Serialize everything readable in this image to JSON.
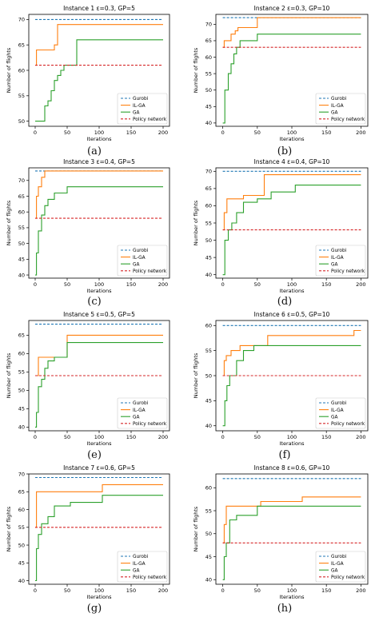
{
  "figure": {
    "panel_labels": [
      "(a)",
      "(b)",
      "(c)",
      "(d)",
      "(e)",
      "(f)",
      "(g)",
      "(h)"
    ]
  },
  "colors": {
    "gurobi": "#1f77b4",
    "ilga": "#ff7f0e",
    "ga": "#2ca02c",
    "policy": "#d62728"
  },
  "chart_data": [
    {
      "type": "line",
      "title": "Instance 1 ε=0.3, GP=5",
      "xlabel": "Iterations",
      "ylabel": "Number of flights",
      "xlim": [
        -10,
        210
      ],
      "ylim": [
        49,
        71
      ],
      "xticks": [
        0,
        50,
        100,
        150,
        200
      ],
      "yticks": [
        50,
        55,
        60,
        65,
        70
      ],
      "grid": false,
      "legend_position": "lower-right",
      "series": [
        {
          "name": "Gurobi",
          "style": "dashed",
          "color": "gurobi",
          "x": [
            0,
            200
          ],
          "y": [
            70,
            70
          ]
        },
        {
          "name": "IL-GA",
          "style": "step",
          "color": "ilga",
          "x": [
            0,
            2,
            30,
            35,
            200
          ],
          "y": [
            61,
            64,
            65,
            69,
            69
          ]
        },
        {
          "name": "GA",
          "style": "step",
          "color": "ga",
          "x": [
            0,
            15,
            20,
            25,
            30,
            35,
            40,
            45,
            65,
            200
          ],
          "y": [
            50,
            53,
            54,
            56,
            58,
            59,
            60,
            61,
            66,
            66
          ]
        },
        {
          "name": "Policy network",
          "style": "dashed",
          "color": "policy",
          "x": [
            0,
            200
          ],
          "y": [
            61,
            61
          ]
        }
      ]
    },
    {
      "type": "line",
      "title": "Instance 2 ε=0.3, GP=10",
      "xlabel": "Iterations",
      "ylabel": "Number of flights",
      "xlim": [
        -10,
        210
      ],
      "ylim": [
        39,
        73
      ],
      "xticks": [
        0,
        50,
        100,
        150,
        200
      ],
      "yticks": [
        40,
        45,
        50,
        55,
        60,
        65,
        70
      ],
      "grid": false,
      "legend_position": "lower-right",
      "series": [
        {
          "name": "Gurobi",
          "style": "dashed",
          "color": "gurobi",
          "x": [
            0,
            200
          ],
          "y": [
            72,
            72
          ]
        },
        {
          "name": "IL-GA",
          "style": "step",
          "color": "ilga",
          "x": [
            0,
            2,
            12,
            18,
            22,
            50,
            200
          ],
          "y": [
            63,
            65,
            67,
            68,
            69,
            72,
            72
          ]
        },
        {
          "name": "GA",
          "style": "step",
          "color": "ga",
          "x": [
            0,
            3,
            8,
            12,
            16,
            20,
            25,
            50,
            200
          ],
          "y": [
            40,
            50,
            55,
            58,
            61,
            63,
            65,
            67,
            67
          ]
        },
        {
          "name": "Policy network",
          "style": "dashed",
          "color": "policy",
          "x": [
            0,
            200
          ],
          "y": [
            63,
            63
          ]
        }
      ]
    },
    {
      "type": "line",
      "title": "Instance 3 ε=0.4, GP=5",
      "xlabel": "Iterations",
      "ylabel": "Number of flights",
      "xlim": [
        -10,
        210
      ],
      "ylim": [
        39,
        74
      ],
      "xticks": [
        0,
        50,
        100,
        150,
        200
      ],
      "yticks": [
        40,
        45,
        50,
        55,
        60,
        65,
        70
      ],
      "grid": false,
      "legend_position": "lower-right",
      "series": [
        {
          "name": "Gurobi",
          "style": "dashed",
          "color": "gurobi",
          "x": [
            0,
            200
          ],
          "y": [
            73,
            73
          ]
        },
        {
          "name": "IL-GA",
          "style": "step",
          "color": "ilga",
          "x": [
            0,
            2,
            5,
            10,
            15,
            200
          ],
          "y": [
            58,
            65,
            68,
            71,
            73,
            73
          ]
        },
        {
          "name": "GA",
          "style": "step",
          "color": "ga",
          "x": [
            0,
            2,
            5,
            10,
            15,
            20,
            30,
            50,
            200
          ],
          "y": [
            40,
            47,
            54,
            59,
            62,
            64,
            66,
            68,
            68
          ]
        },
        {
          "name": "Policy network",
          "style": "dashed",
          "color": "policy",
          "x": [
            0,
            200
          ],
          "y": [
            58,
            58
          ]
        }
      ]
    },
    {
      "type": "line",
      "title": "Instance 4 ε=0.4, GP=10",
      "xlabel": "Iterations",
      "ylabel": "Number of flights",
      "xlim": [
        -10,
        210
      ],
      "ylim": [
        39,
        71
      ],
      "xticks": [
        0,
        50,
        100,
        150,
        200
      ],
      "yticks": [
        40,
        45,
        50,
        55,
        60,
        65,
        70
      ],
      "grid": false,
      "legend_position": "lower-right",
      "series": [
        {
          "name": "Gurobi",
          "style": "dashed",
          "color": "gurobi",
          "x": [
            0,
            200
          ],
          "y": [
            70,
            70
          ]
        },
        {
          "name": "IL-GA",
          "style": "step",
          "color": "ilga",
          "x": [
            0,
            2,
            6,
            30,
            60,
            200
          ],
          "y": [
            53,
            58,
            62,
            63,
            69,
            69
          ]
        },
        {
          "name": "GA",
          "style": "step",
          "color": "ga",
          "x": [
            0,
            3,
            8,
            13,
            20,
            30,
            50,
            70,
            105,
            200
          ],
          "y": [
            40,
            50,
            53,
            55,
            58,
            61,
            62,
            64,
            66,
            66
          ]
        },
        {
          "name": "Policy network",
          "style": "dashed",
          "color": "policy",
          "x": [
            0,
            200
          ],
          "y": [
            53,
            53
          ]
        }
      ]
    },
    {
      "type": "line",
      "title": "Instance 5 ε=0.5, GP=5",
      "xlabel": "Iterations",
      "ylabel": "Number of flights",
      "xlim": [
        -10,
        210
      ],
      "ylim": [
        39,
        69
      ],
      "xticks": [
        0,
        50,
        100,
        150,
        200
      ],
      "yticks": [
        40,
        45,
        50,
        55,
        60,
        65
      ],
      "grid": false,
      "legend_position": "lower-right",
      "series": [
        {
          "name": "Gurobi",
          "style": "dashed",
          "color": "gurobi",
          "x": [
            0,
            200
          ],
          "y": [
            68,
            68
          ]
        },
        {
          "name": "IL-GA",
          "style": "step",
          "color": "ilga",
          "x": [
            0,
            5,
            50,
            200
          ],
          "y": [
            54,
            59,
            65,
            65
          ]
        },
        {
          "name": "GA",
          "style": "step",
          "color": "ga",
          "x": [
            0,
            2,
            5,
            10,
            15,
            20,
            30,
            50,
            200
          ],
          "y": [
            40,
            44,
            51,
            53,
            56,
            58,
            59,
            63,
            63
          ]
        },
        {
          "name": "Policy network",
          "style": "dashed",
          "color": "policy",
          "x": [
            0,
            200
          ],
          "y": [
            54,
            54
          ]
        }
      ]
    },
    {
      "type": "line",
      "title": "Instance 6 ε=0.5, GP=10",
      "xlabel": "Iterations",
      "ylabel": "Number of flights",
      "xlim": [
        -10,
        210
      ],
      "ylim": [
        39,
        61
      ],
      "xticks": [
        0,
        50,
        100,
        150,
        200
      ],
      "yticks": [
        40,
        45,
        50,
        55,
        60
      ],
      "grid": false,
      "legend_position": "lower-right",
      "series": [
        {
          "name": "Gurobi",
          "style": "dashed",
          "color": "gurobi",
          "x": [
            0,
            200
          ],
          "y": [
            60,
            60
          ]
        },
        {
          "name": "IL-GA",
          "style": "step",
          "color": "ilga",
          "x": [
            0,
            2,
            5,
            12,
            25,
            65,
            190,
            200
          ],
          "y": [
            50,
            53,
            54,
            55,
            56,
            58,
            59,
            59
          ]
        },
        {
          "name": "GA",
          "style": "step",
          "color": "ga",
          "x": [
            0,
            3,
            6,
            10,
            20,
            30,
            45,
            200
          ],
          "y": [
            40,
            45,
            48,
            50,
            53,
            55,
            56,
            56
          ]
        },
        {
          "name": "Policy network",
          "style": "dashed",
          "color": "policy",
          "x": [
            0,
            200
          ],
          "y": [
            50,
            50
          ]
        }
      ]
    },
    {
      "type": "line",
      "title": "Instance 7 ε=0.6, GP=5",
      "xlabel": "Iterations",
      "ylabel": "Number of flights",
      "xlim": [
        -10,
        210
      ],
      "ylim": [
        39,
        70
      ],
      "xticks": [
        0,
        50,
        100,
        150,
        200
      ],
      "yticks": [
        40,
        45,
        50,
        55,
        60,
        65,
        70
      ],
      "grid": false,
      "legend_position": "lower-right",
      "series": [
        {
          "name": "Gurobi",
          "style": "dashed",
          "color": "gurobi",
          "x": [
            0,
            200
          ],
          "y": [
            69,
            69
          ]
        },
        {
          "name": "IL-GA",
          "style": "step",
          "color": "ilga",
          "x": [
            0,
            2,
            105,
            200
          ],
          "y": [
            55,
            65,
            67,
            67
          ]
        },
        {
          "name": "GA",
          "style": "step",
          "color": "ga",
          "x": [
            0,
            2,
            5,
            10,
            20,
            30,
            55,
            105,
            200
          ],
          "y": [
            40,
            49,
            53,
            56,
            58,
            61,
            62,
            64,
            64
          ]
        },
        {
          "name": "Policy network",
          "style": "dashed",
          "color": "policy",
          "x": [
            0,
            200
          ],
          "y": [
            55,
            55
          ]
        }
      ]
    },
    {
      "type": "line",
      "title": "Instance 8 ε=0.6, GP=10",
      "xlabel": "Iterations",
      "ylabel": "Number of flights",
      "xlim": [
        -10,
        210
      ],
      "ylim": [
        39,
        63
      ],
      "xticks": [
        0,
        50,
        100,
        150,
        200
      ],
      "yticks": [
        40,
        45,
        50,
        55,
        60
      ],
      "grid": false,
      "legend_position": "lower-right",
      "series": [
        {
          "name": "Gurobi",
          "style": "dashed",
          "color": "gurobi",
          "x": [
            0,
            200
          ],
          "y": [
            62,
            62
          ]
        },
        {
          "name": "IL-GA",
          "style": "step",
          "color": "ilga",
          "x": [
            0,
            2,
            5,
            55,
            115,
            200
          ],
          "y": [
            48,
            52,
            56,
            57,
            58,
            58
          ]
        },
        {
          "name": "GA",
          "style": "step",
          "color": "ga",
          "x": [
            0,
            2,
            5,
            10,
            20,
            50,
            200
          ],
          "y": [
            40,
            45,
            48,
            53,
            54,
            56,
            56
          ]
        },
        {
          "name": "Policy network",
          "style": "dashed",
          "color": "policy",
          "x": [
            0,
            200
          ],
          "y": [
            48,
            48
          ]
        }
      ]
    }
  ]
}
